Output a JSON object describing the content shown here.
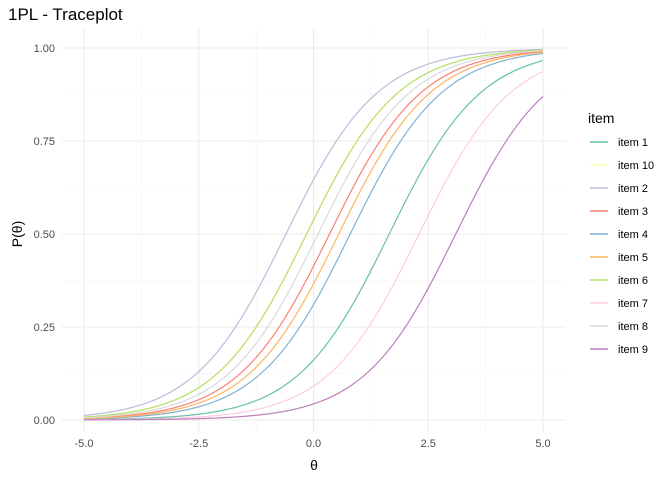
{
  "chart_data": {
    "type": "line",
    "title": "1PL - Traceplot",
    "xlabel": "θ",
    "ylabel": "P(θ)",
    "xlim": [
      -5,
      5
    ],
    "ylim": [
      0,
      1
    ],
    "x_ticks": [
      -5,
      -2.5,
      0,
      2.5,
      5
    ],
    "x_tick_labels": [
      "-5.0",
      "-2.5",
      "0.0",
      "2.5",
      "5.0"
    ],
    "y_ticks": [
      0,
      0.25,
      0.5,
      0.75,
      1
    ],
    "y_tick_labels": [
      "0.00",
      "0.25",
      "0.50",
      "0.75",
      "1.00"
    ],
    "grid": true,
    "legend": {
      "title": "item",
      "position": "right"
    },
    "model": "logistic",
    "series": [
      {
        "name": "item 1",
        "difficulty": 1.65,
        "color": "#66c2a5"
      },
      {
        "name": "item 10",
        "difficulty": -0.15,
        "color": "#ffffb3"
      },
      {
        "name": "item 2",
        "difficulty": -0.6,
        "color": "#bebada"
      },
      {
        "name": "item 3",
        "difficulty": 0.35,
        "color": "#fb8072"
      },
      {
        "name": "item 4",
        "difficulty": 0.8,
        "color": "#80b1d3"
      },
      {
        "name": "item 5",
        "difficulty": 0.55,
        "color": "#fdb462"
      },
      {
        "name": "item 6",
        "difficulty": -0.15,
        "color": "#b3de69"
      },
      {
        "name": "item 7",
        "difficulty": 2.3,
        "color": "#fccde5"
      },
      {
        "name": "item 8",
        "difficulty": 0.1,
        "color": "#d9d9d9"
      },
      {
        "name": "item 9",
        "difficulty": 3.1,
        "color": "#bc80bd"
      }
    ]
  }
}
